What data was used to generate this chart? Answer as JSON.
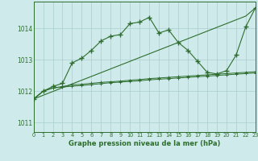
{
  "title": "Graphe pression niveau de la mer (hPa)",
  "bg_color": "#ceeaea",
  "grid_color": "#aacece",
  "line_color": "#2d6e2d",
  "xlim": [
    0,
    23
  ],
  "ylim": [
    1010.7,
    1014.85
  ],
  "yticks": [
    1011,
    1012,
    1013,
    1014
  ],
  "xticks": [
    0,
    1,
    2,
    3,
    4,
    5,
    6,
    7,
    8,
    9,
    10,
    11,
    12,
    13,
    14,
    15,
    16,
    17,
    18,
    19,
    20,
    21,
    22,
    23
  ],
  "hours": [
    0,
    1,
    2,
    3,
    4,
    5,
    6,
    7,
    8,
    9,
    10,
    11,
    12,
    13,
    14,
    15,
    16,
    17,
    18,
    19,
    20,
    21,
    22,
    23
  ],
  "line_main": [
    1011.75,
    1012.0,
    1012.15,
    1012.25,
    1012.9,
    1013.05,
    1013.3,
    1013.6,
    1013.75,
    1013.8,
    1014.15,
    1014.2,
    1014.35,
    1013.85,
    1013.95,
    1013.55,
    1013.3,
    1012.95,
    1012.6,
    1012.55,
    1012.65,
    1013.15,
    1014.05,
    1014.65
  ],
  "line_diagonal": [
    1011.75,
    1011.87,
    1011.99,
    1012.11,
    1012.23,
    1012.35,
    1012.47,
    1012.59,
    1012.71,
    1012.83,
    1012.95,
    1013.07,
    1013.19,
    1013.31,
    1013.43,
    1013.55,
    1013.67,
    1013.79,
    1013.91,
    1014.03,
    1014.15,
    1014.27,
    1014.39,
    1014.65
  ],
  "line_flat1": [
    1011.75,
    1012.0,
    1012.1,
    1012.15,
    1012.2,
    1012.22,
    1012.25,
    1012.28,
    1012.3,
    1012.32,
    1012.35,
    1012.37,
    1012.4,
    1012.42,
    1012.44,
    1012.46,
    1012.48,
    1012.5,
    1012.52,
    1012.54,
    1012.56,
    1012.58,
    1012.6,
    1012.62
  ],
  "line_flat2": [
    1011.75,
    1012.0,
    1012.1,
    1012.13,
    1012.16,
    1012.18,
    1012.21,
    1012.24,
    1012.27,
    1012.29,
    1012.31,
    1012.33,
    1012.36,
    1012.38,
    1012.4,
    1012.42,
    1012.44,
    1012.46,
    1012.48,
    1012.5,
    1012.52,
    1012.54,
    1012.56,
    1012.58
  ]
}
